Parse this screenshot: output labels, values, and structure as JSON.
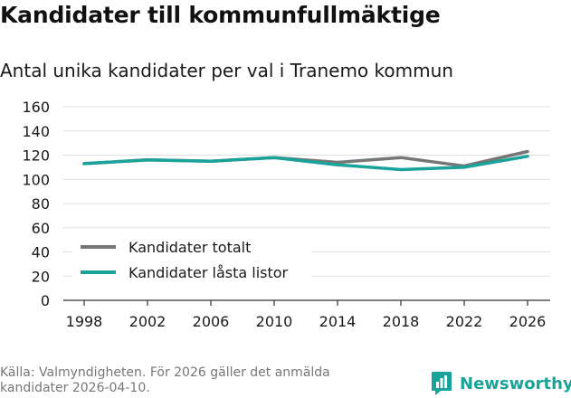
{
  "header": {
    "title": "Kandidater till kommunfullmäktige",
    "subtitle": "Antal unika kandidater per val i Tranemo kommun"
  },
  "chart_data": {
    "type": "line",
    "title": "Antal unika kandidater per val i Tranemo kommun",
    "xlabel": "",
    "ylabel": "",
    "categories": [
      "1998",
      "2002",
      "2006",
      "2010",
      "2014",
      "2018",
      "2022",
      "2026"
    ],
    "series": [
      {
        "name": "Kandidater totalt",
        "color": "#767676",
        "values": [
          113,
          116,
          115,
          118,
          114,
          118,
          111,
          123
        ]
      },
      {
        "name": "Kandidater låsta listor",
        "color": "#1aa39a",
        "values": [
          113,
          116,
          115,
          118,
          112,
          108,
          110,
          119
        ]
      }
    ],
    "ylim": [
      0,
      160
    ],
    "yticks": [
      0,
      20,
      40,
      60,
      80,
      100,
      120,
      140,
      160
    ],
    "grid": true,
    "legend": "bottom-left"
  },
  "footer": {
    "source": "Källa: Valmyndigheten. För 2026 gäller det anmälda kandidater 2026-04-10.",
    "brand": "Newsworthy",
    "brand_icon": "bar-chart-speech-bubble-icon",
    "brand_color": "#1aa39a"
  }
}
